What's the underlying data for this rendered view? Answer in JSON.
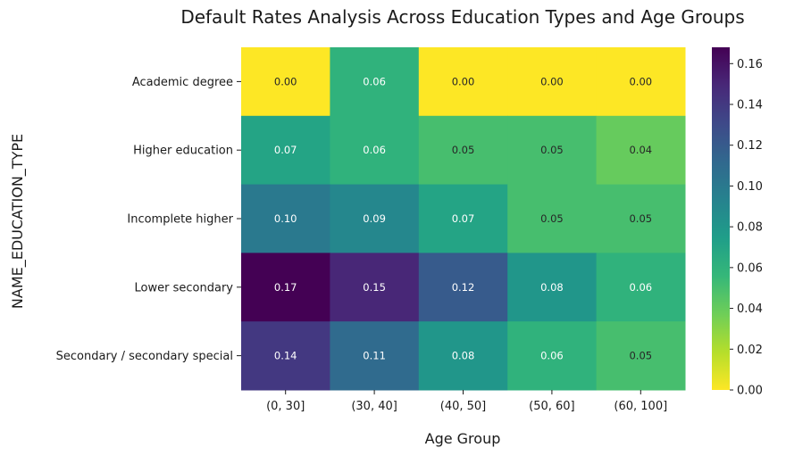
{
  "chart_data": {
    "type": "heatmap",
    "title": "Default Rates Analysis Across Education Types and Age Groups",
    "xlabel": "Age Group",
    "ylabel": "NAME_EDUCATION_TYPE",
    "x_categories": [
      "(0, 30]",
      "(30, 40]",
      "(40, 50]",
      "(50, 60]",
      "(60, 100]"
    ],
    "y_categories": [
      "Academic degree",
      "Higher education",
      "Incomplete higher",
      "Lower secondary",
      "Secondary / secondary special"
    ],
    "values": [
      [
        0.0,
        0.06,
        0.0,
        0.0,
        0.0
      ],
      [
        0.07,
        0.06,
        0.05,
        0.05,
        0.04
      ],
      [
        0.1,
        0.09,
        0.07,
        0.05,
        0.05
      ],
      [
        0.17,
        0.15,
        0.12,
        0.08,
        0.06
      ],
      [
        0.14,
        0.11,
        0.08,
        0.06,
        0.05
      ]
    ],
    "value_format": "0.00",
    "colormap": "viridis_r",
    "colorbar": {
      "range": [
        0.0,
        0.168
      ],
      "ticks": [
        "0.00",
        "0.02",
        "0.04",
        "0.06",
        "0.08",
        "0.10",
        "0.12",
        "0.14",
        "0.16"
      ]
    },
    "colormap_stops": [
      "#440154",
      "#482878",
      "#3e4989",
      "#31688e",
      "#26828e",
      "#1f9e89",
      "#35b779",
      "#6ece58",
      "#b5de2b",
      "#fde725"
    ]
  }
}
